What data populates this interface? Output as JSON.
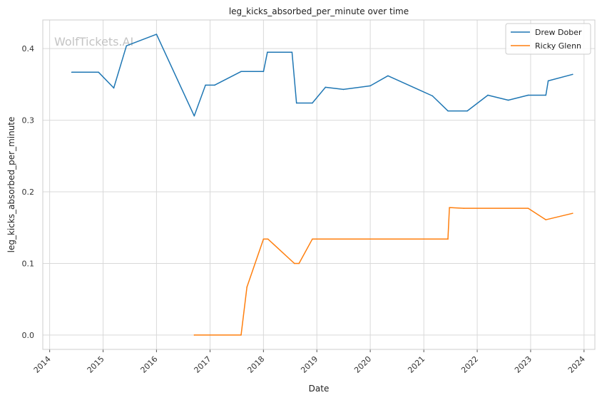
{
  "watermark": "WolfTickets.AI",
  "chart_data": {
    "type": "line",
    "title": "leg_kicks_absorbed_per_minute over time",
    "xlabel": "Date",
    "ylabel": "leg_kicks_absorbed_per_minute",
    "x_ticks": [
      "2014",
      "2015",
      "2016",
      "2017",
      "2018",
      "2019",
      "2020",
      "2021",
      "2022",
      "2023",
      "2024"
    ],
    "y_ticks": [
      "0.0",
      "0.1",
      "0.2",
      "0.3",
      "0.4"
    ],
    "xlim": [
      "2013-11-15",
      "2024-03-15"
    ],
    "ylim": [
      -0.02,
      0.44
    ],
    "grid": true,
    "legend_position": "top-right",
    "series": [
      {
        "name": "Drew Dober",
        "color": "#1f77b4",
        "points": [
          [
            "2014-06-01",
            0.367
          ],
          [
            "2014-12-01",
            0.367
          ],
          [
            "2015-03-15",
            0.345
          ],
          [
            "2015-06-10",
            0.404
          ],
          [
            "2016-01-01",
            0.42
          ],
          [
            "2016-09-15",
            0.306
          ],
          [
            "2016-12-01",
            0.349
          ],
          [
            "2017-02-01",
            0.349
          ],
          [
            "2017-08-01",
            0.368
          ],
          [
            "2018-01-01",
            0.368
          ],
          [
            "2018-01-28",
            0.395
          ],
          [
            "2018-07-15",
            0.395
          ],
          [
            "2018-08-15",
            0.324
          ],
          [
            "2018-12-01",
            0.324
          ],
          [
            "2019-03-01",
            0.346
          ],
          [
            "2019-07-01",
            0.343
          ],
          [
            "2020-01-01",
            0.348
          ],
          [
            "2020-05-01",
            0.362
          ],
          [
            "2021-03-01",
            0.334
          ],
          [
            "2021-06-15",
            0.313
          ],
          [
            "2021-10-25",
            0.313
          ],
          [
            "2022-03-15",
            0.335
          ],
          [
            "2022-08-01",
            0.328
          ],
          [
            "2022-12-15",
            0.335
          ],
          [
            "2023-04-15",
            0.335
          ],
          [
            "2023-05-01",
            0.355
          ],
          [
            "2023-10-15",
            0.364
          ]
        ]
      },
      {
        "name": "Ricky Glenn",
        "color": "#ff7f0e",
        "points": [
          [
            "2016-09-15",
            0.0
          ],
          [
            "2017-08-01",
            0.0
          ],
          [
            "2017-09-10",
            0.067
          ],
          [
            "2018-01-01",
            0.134
          ],
          [
            "2018-02-01",
            0.134
          ],
          [
            "2018-08-01",
            0.1
          ],
          [
            "2018-09-01",
            0.1
          ],
          [
            "2018-12-01",
            0.134
          ],
          [
            "2021-06-15",
            0.134
          ],
          [
            "2021-06-25",
            0.178
          ],
          [
            "2021-10-01",
            0.177
          ],
          [
            "2022-12-15",
            0.177
          ],
          [
            "2023-04-15",
            0.161
          ],
          [
            "2023-10-15",
            0.17
          ]
        ]
      }
    ]
  }
}
